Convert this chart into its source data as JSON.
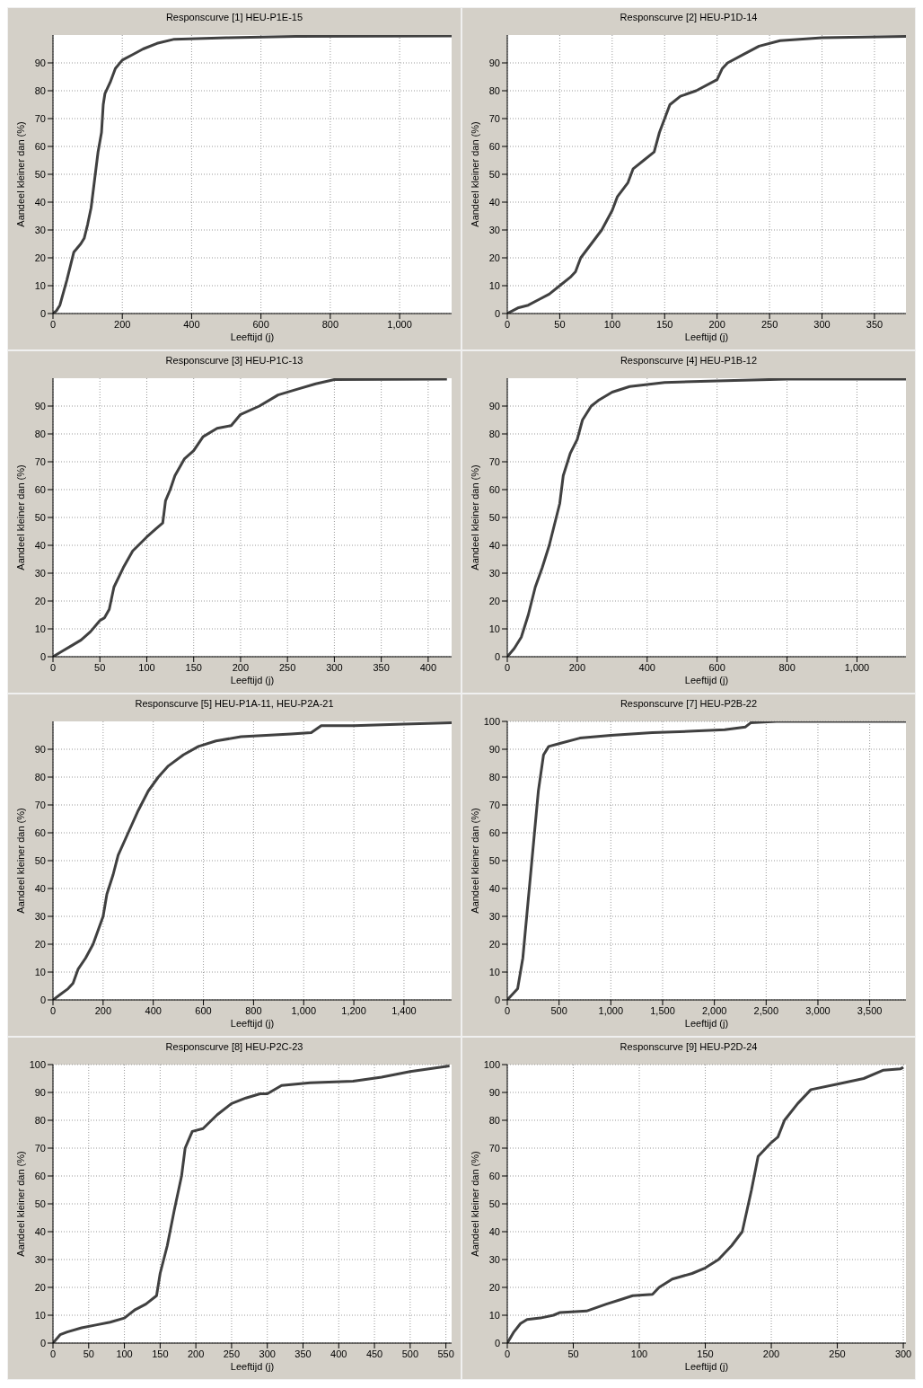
{
  "chart_data": [
    {
      "type": "line",
      "title": "Responscurve [1] HEU-P1E-15",
      "xlabel": "Leeftijd (j)",
      "ylabel": "Aandeel kleiner dan (%)",
      "color": "#404040",
      "grid": true,
      "line_style": "solid",
      "marker": "none",
      "legend": false,
      "xlim": [
        0,
        1150
      ],
      "xticks": [
        0,
        200,
        400,
        600,
        800,
        {
          "value": 1000,
          "label": "1,000"
        }
      ],
      "ylim": [
        0,
        100
      ],
      "yticks": [
        0,
        10,
        20,
        30,
        40,
        50,
        60,
        70,
        80,
        90
      ],
      "x": [
        0,
        10,
        20,
        40,
        60,
        80,
        90,
        100,
        110,
        120,
        130,
        140,
        145,
        150,
        165,
        180,
        200,
        230,
        260,
        300,
        350,
        500,
        700,
        1150
      ],
      "values": [
        0,
        1,
        3,
        12,
        22,
        25,
        27,
        32,
        38,
        48,
        58,
        65,
        75,
        79,
        83,
        88,
        91,
        93,
        95,
        97,
        98.5,
        99,
        99.5,
        99.7
      ]
    },
    {
      "type": "line",
      "title": "Responscurve [2] HEU-P1D-14",
      "xlabel": "Leeftijd (j)",
      "ylabel": "Aandeel kleiner dan (%)",
      "color": "#404040",
      "grid": true,
      "line_style": "solid",
      "marker": "none",
      "legend": false,
      "xlim": [
        0,
        380
      ],
      "xticks": [
        0,
        50,
        100,
        150,
        200,
        250,
        300,
        350
      ],
      "ylim": [
        0,
        100
      ],
      "yticks": [
        0,
        10,
        20,
        30,
        40,
        50,
        60,
        70,
        80,
        90
      ],
      "x": [
        0,
        10,
        20,
        30,
        40,
        50,
        60,
        65,
        70,
        80,
        90,
        100,
        105,
        115,
        120,
        130,
        140,
        145,
        150,
        155,
        165,
        180,
        200,
        205,
        210,
        225,
        240,
        260,
        300,
        380
      ],
      "values": [
        0,
        2,
        3,
        5,
        7,
        10,
        13,
        15,
        20,
        25,
        30,
        37,
        42,
        47,
        52,
        55,
        58,
        65,
        70,
        75,
        78,
        80,
        84,
        88,
        90,
        93,
        96,
        98,
        99,
        99.5
      ]
    },
    {
      "type": "line",
      "title": "Responscurve [3] HEU-P1C-13",
      "xlabel": "Leeftijd (j)",
      "ylabel": "Aandeel kleiner dan (%)",
      "color": "#404040",
      "grid": true,
      "line_style": "solid",
      "marker": "none",
      "legend": false,
      "xlim": [
        0,
        425
      ],
      "xticks": [
        0,
        50,
        100,
        150,
        200,
        250,
        300,
        350,
        400
      ],
      "ylim": [
        0,
        100
      ],
      "yticks": [
        0,
        10,
        20,
        30,
        40,
        50,
        60,
        70,
        80,
        90
      ],
      "x": [
        0,
        10,
        20,
        30,
        40,
        50,
        55,
        60,
        65,
        75,
        85,
        100,
        110,
        117,
        120,
        125,
        130,
        140,
        150,
        160,
        175,
        190,
        200,
        220,
        240,
        260,
        280,
        300,
        420
      ],
      "values": [
        0,
        2,
        4,
        6,
        9,
        13,
        14,
        17,
        25,
        32,
        38,
        43,
        46,
        48,
        56,
        60,
        65,
        71,
        74,
        79,
        82,
        83,
        87,
        90,
        94,
        96,
        98,
        99.5,
        99.7
      ]
    },
    {
      "type": "line",
      "title": "Responscurve [4] HEU-P1B-12",
      "xlabel": "Leeftijd (j)",
      "ylabel": "Aandeel kleiner dan (%)",
      "color": "#404040",
      "grid": true,
      "line_style": "solid",
      "marker": "none",
      "legend": false,
      "xlim": [
        0,
        1140
      ],
      "xticks": [
        0,
        200,
        400,
        600,
        800,
        {
          "value": 1000,
          "label": "1,000"
        }
      ],
      "ylim": [
        0,
        100
      ],
      "yticks": [
        0,
        10,
        20,
        30,
        40,
        50,
        60,
        70,
        80,
        90
      ],
      "x": [
        0,
        20,
        40,
        60,
        80,
        100,
        120,
        140,
        150,
        160,
        180,
        200,
        215,
        240,
        260,
        300,
        350,
        450,
        600,
        800,
        1140
      ],
      "values": [
        0,
        3,
        7,
        15,
        25,
        32,
        40,
        50,
        55,
        65,
        73,
        78,
        85,
        90,
        92,
        95,
        97,
        98.5,
        99,
        99.7,
        99.7
      ]
    },
    {
      "type": "line",
      "title": "Responscurve [5] HEU-P1A-11, HEU-P2A-21",
      "xlabel": "Leeftijd (j)",
      "ylabel": "Aandeel kleiner dan (%)",
      "color": "#404040",
      "grid": true,
      "line_style": "solid",
      "marker": "none",
      "legend": false,
      "xlim": [
        0,
        1590
      ],
      "xticks": [
        0,
        200,
        400,
        600,
        800,
        {
          "value": 1000,
          "label": "1,000"
        },
        {
          "value": 1200,
          "label": "1,200"
        },
        {
          "value": 1400,
          "label": "1,400"
        }
      ],
      "ylim": [
        0,
        100
      ],
      "yticks": [
        0,
        10,
        20,
        30,
        40,
        50,
        60,
        70,
        80,
        90
      ],
      "x": [
        0,
        30,
        60,
        80,
        100,
        130,
        160,
        180,
        200,
        215,
        240,
        260,
        300,
        340,
        380,
        420,
        460,
        520,
        580,
        650,
        750,
        850,
        950,
        1030,
        1070,
        1200,
        1400,
        1590
      ],
      "values": [
        0,
        2,
        4,
        6,
        11,
        15,
        20,
        25,
        30,
        38,
        45,
        52,
        60,
        68,
        75,
        80,
        84,
        88,
        91,
        93,
        94.5,
        95,
        95.5,
        96,
        98.5,
        98.5,
        99,
        99.5
      ]
    },
    {
      "type": "line",
      "title": "Responscurve [7] HEU-P2B-22",
      "xlabel": "Leeftijd (j)",
      "ylabel": "Aandeel kleiner dan (%)",
      "color": "#404040",
      "grid": true,
      "line_style": "solid",
      "marker": "none",
      "legend": false,
      "xlim": [
        0,
        3850
      ],
      "xticks": [
        0,
        500,
        {
          "value": 1000,
          "label": "1,000"
        },
        {
          "value": 1500,
          "label": "1,500"
        },
        {
          "value": 2000,
          "label": "2,000"
        },
        {
          "value": 2500,
          "label": "2,500"
        },
        {
          "value": 3000,
          "label": "3,000"
        },
        {
          "value": 3500,
          "label": "3,500"
        }
      ],
      "ylim": [
        0,
        100
      ],
      "yticks": [
        0,
        10,
        20,
        30,
        40,
        50,
        60,
        70,
        80,
        90,
        100
      ],
      "x": [
        0,
        50,
        100,
        150,
        200,
        250,
        300,
        350,
        400,
        500,
        700,
        1000,
        1400,
        1800,
        2100,
        2300,
        2350,
        2600,
        3850
      ],
      "values": [
        0,
        2,
        4,
        15,
        35,
        55,
        75,
        88,
        91,
        92,
        94,
        95,
        96,
        96.5,
        97,
        98,
        99.5,
        100,
        100
      ]
    },
    {
      "type": "line",
      "title": "Responscurve [8] HEU-P2C-23",
      "xlabel": "Leeftijd (j)",
      "ylabel": "Aandeel kleiner dan (%)",
      "color": "#404040",
      "grid": true,
      "line_style": "solid",
      "marker": "none",
      "legend": false,
      "xlim": [
        0,
        558
      ],
      "xticks": [
        0,
        50,
        100,
        150,
        200,
        250,
        300,
        350,
        400,
        450,
        500,
        550
      ],
      "ylim": [
        0,
        100
      ],
      "yticks": [
        0,
        10,
        20,
        30,
        40,
        50,
        60,
        70,
        80,
        90,
        100
      ],
      "x": [
        0,
        10,
        20,
        40,
        60,
        80,
        100,
        115,
        130,
        145,
        150,
        160,
        170,
        180,
        185,
        195,
        210,
        230,
        250,
        270,
        290,
        300,
        320,
        360,
        420,
        460,
        500,
        555
      ],
      "values": [
        0,
        3,
        4,
        5.5,
        6.5,
        7.5,
        9,
        12,
        14,
        17,
        25,
        35,
        48,
        60,
        70,
        76,
        77,
        82,
        86,
        88,
        89.5,
        89.5,
        92.5,
        93.5,
        94,
        95.5,
        97.5,
        99.5
      ]
    },
    {
      "type": "line",
      "title": "Responscurve [9] HEU-P2D-24",
      "xlabel": "Leeftijd (j)",
      "ylabel": "Aandeel kleiner dan (%)",
      "color": "#404040",
      "grid": true,
      "line_style": "solid",
      "marker": "none",
      "legend": false,
      "xlim": [
        0,
        302
      ],
      "xticks": [
        0,
        50,
        100,
        150,
        200,
        250,
        300
      ],
      "ylim": [
        0,
        100
      ],
      "yticks": [
        0,
        10,
        20,
        30,
        40,
        50,
        60,
        70,
        80,
        90,
        100
      ],
      "x": [
        0,
        5,
        10,
        15,
        25,
        35,
        40,
        60,
        75,
        85,
        95,
        110,
        115,
        125,
        140,
        150,
        160,
        170,
        178,
        185,
        190,
        200,
        205,
        210,
        220,
        230,
        250,
        270,
        285,
        298,
        300
      ],
      "values": [
        0,
        4,
        7,
        8.5,
        9,
        10,
        11,
        11.5,
        14,
        15.5,
        17,
        17.5,
        20,
        23,
        25,
        27,
        30,
        35,
        40,
        55,
        67,
        72,
        74,
        80,
        86,
        91,
        93,
        95,
        98,
        98.5,
        99
      ]
    }
  ]
}
